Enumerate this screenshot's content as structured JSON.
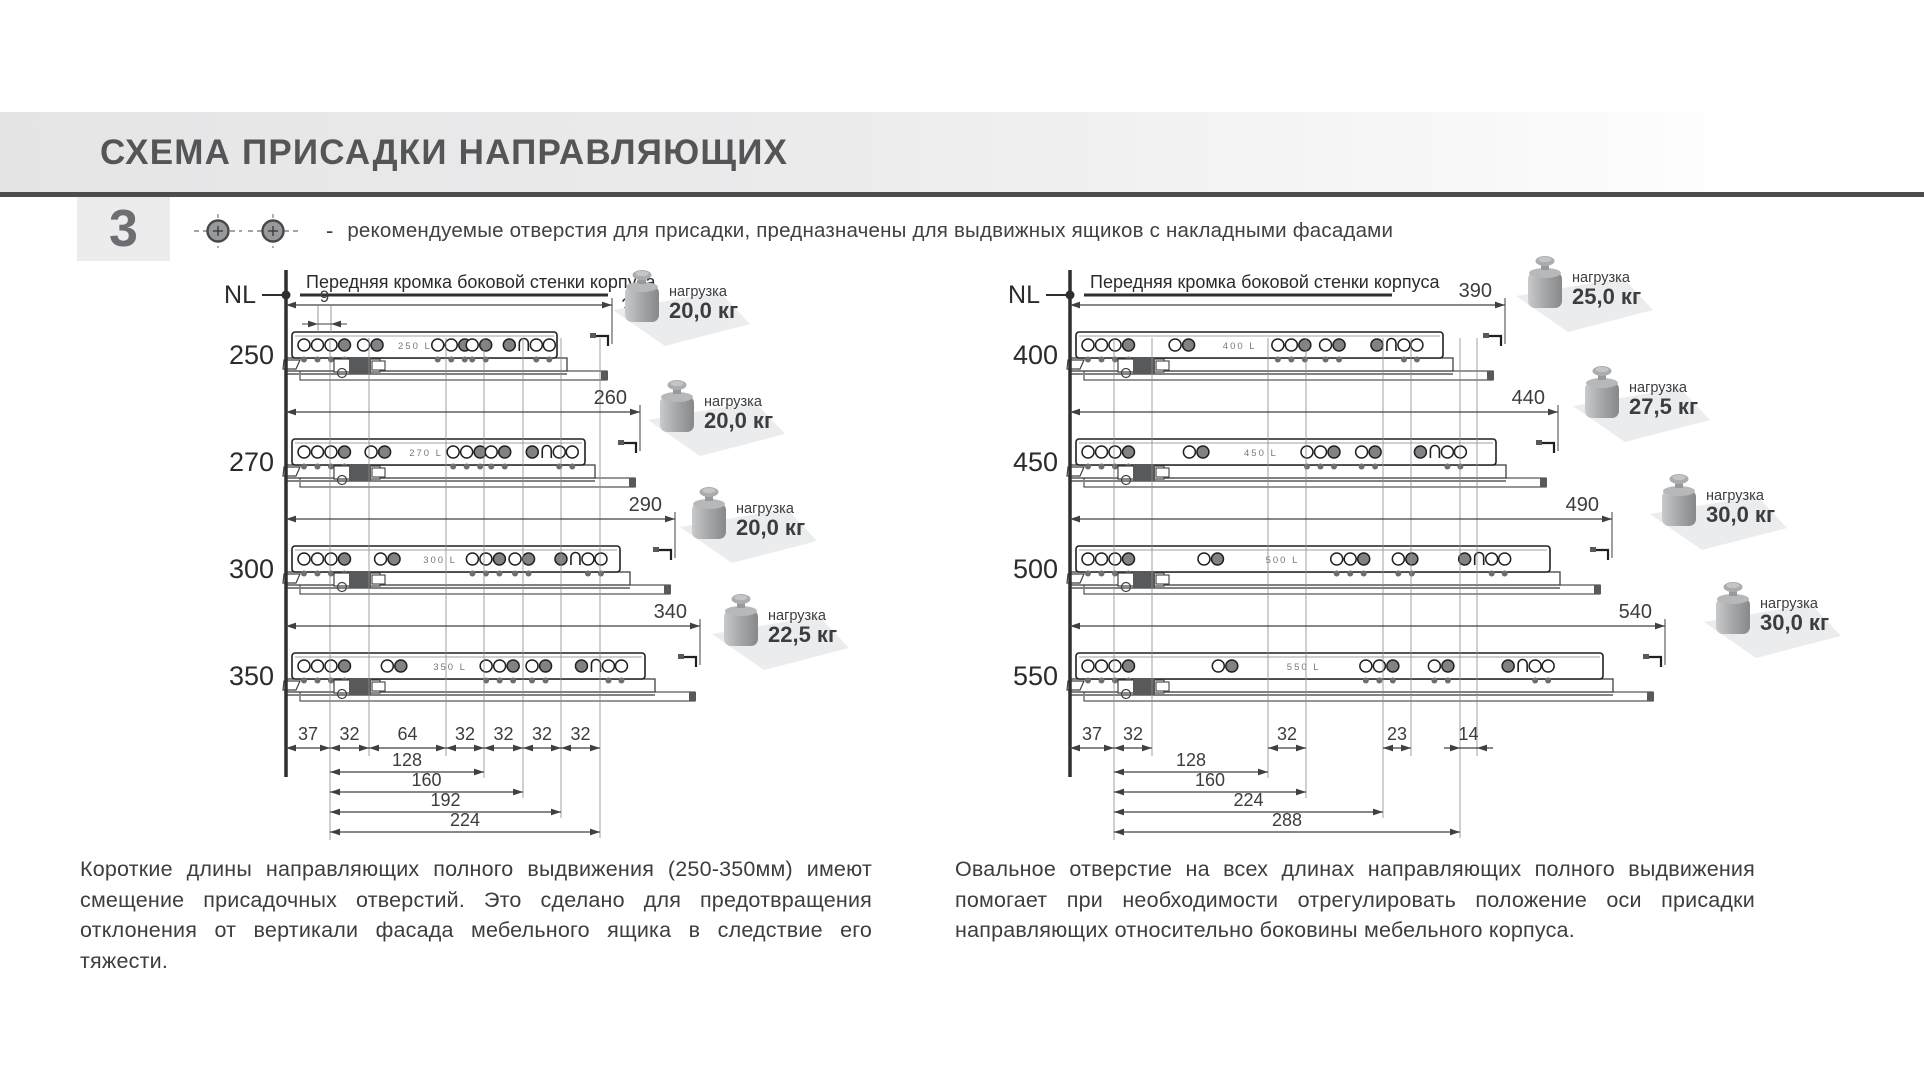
{
  "header": {
    "title": "СХЕМА ПРИСАДКИ НАПРАВЛЯЮЩИХ"
  },
  "step": {
    "number": "3"
  },
  "legend": {
    "dash": "-",
    "text": "рекомендуемые отверстия для присадки, предназначены для выдвижных ящиков с накладными фасадами"
  },
  "edge_label": "Передняя кромка боковой стенки корпуса",
  "nl_label": "NL",
  "load_word": "нагрузка",
  "panels": [
    {
      "rows": [
        {
          "length": "250",
          "slide_label": "250 L",
          "dim": "240",
          "load": "20,0 кг"
        },
        {
          "length": "270",
          "slide_label": "270 L",
          "dim": "260",
          "load": "20,0 кг"
        },
        {
          "length": "300",
          "slide_label": "300 L",
          "dim": "290",
          "load": "20,0 кг"
        },
        {
          "length": "350",
          "slide_label": "350 L",
          "dim": "340",
          "load": "22,5 кг"
        }
      ],
      "front_dim": "9",
      "small_dims": [
        "37",
        "32",
        "64",
        "32",
        "32",
        "32",
        "32"
      ],
      "chain_dims": [
        "128",
        "160",
        "192",
        "224"
      ],
      "note": "Короткие длины направляющих полного выдвижения (250-350мм) имеют смещение присадочных отверстий. Это сделано для предотвращения отклонения от вертикали фасада мебельного ящика в следствие его тяжести."
    },
    {
      "rows": [
        {
          "length": "400",
          "slide_label": "400 L",
          "dim": "390",
          "load": "25,0 кг"
        },
        {
          "length": "450",
          "slide_label": "450 L",
          "dim": "440",
          "load": "27,5 кг"
        },
        {
          "length": "500",
          "slide_label": "500 L",
          "dim": "490",
          "load": "30,0 кг"
        },
        {
          "length": "550",
          "slide_label": "550 L",
          "dim": "540",
          "load": "30,0 кг"
        }
      ],
      "small_dims": [
        "37",
        "32",
        "32",
        "23",
        "14"
      ],
      "chain_dims": [
        "128",
        "160",
        "224",
        "288"
      ],
      "note": "Овальное отверстие на всех длинах направляющих полного выдвижения помогает при необходимости отрегулировать положение оси присадки направляющих относительно боковины мебельного корпуса."
    }
  ],
  "colors": {
    "line": "#231f20",
    "accent_gray": "#808285",
    "shadow": "#ebeced",
    "rule": "#4c4d4f"
  }
}
